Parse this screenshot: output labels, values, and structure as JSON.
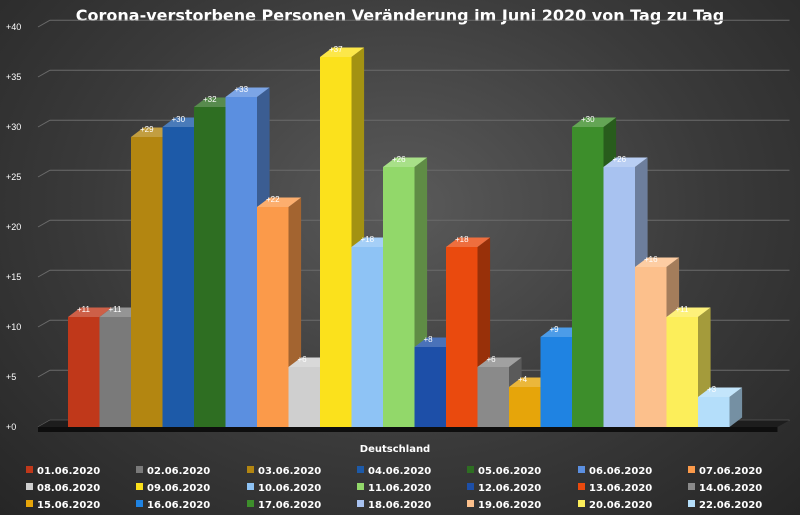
{
  "chart_data": {
    "type": "bar",
    "title": "Corona-verstorbene Personen Veränderung im Juni 2020 von Tag zu Tag",
    "xlabel": "",
    "ylabel": "",
    "categories": [
      "Deutschland"
    ],
    "ylim": [
      0,
      40
    ],
    "y_ticks": [
      "+0",
      "+5",
      "+10",
      "+15",
      "+20",
      "+25",
      "+30",
      "+35",
      "+40"
    ],
    "grid": true,
    "legend_position": "bottom",
    "series": [
      {
        "name": "01.06.2020",
        "values": [
          11
        ],
        "label": "+11",
        "color": "#c0381a"
      },
      {
        "name": "02.06.2020",
        "values": [
          11
        ],
        "label": "+11",
        "color": "#7a7a7a"
      },
      {
        "name": "03.06.2020",
        "values": [
          29
        ],
        "label": "+29",
        "color": "#b38611"
      },
      {
        "name": "04.06.2020",
        "values": [
          30
        ],
        "label": "+30",
        "color": "#1d5aa8"
      },
      {
        "name": "05.06.2020",
        "values": [
          32
        ],
        "label": "+32",
        "color": "#2e6e22"
      },
      {
        "name": "06.06.2020",
        "values": [
          33
        ],
        "label": "+33",
        "color": "#5b8fe0"
      },
      {
        "name": "07.06.2020",
        "values": [
          22
        ],
        "label": "+22",
        "color": "#fb9a4a"
      },
      {
        "name": "08.06.2020",
        "values": [
          6
        ],
        "label": "+6",
        "color": "#cfcfcf"
      },
      {
        "name": "09.06.2020",
        "values": [
          37
        ],
        "label": "+37",
        "color": "#fbe11c"
      },
      {
        "name": "10.06.2020",
        "values": [
          18
        ],
        "label": "+18",
        "color": "#8ec3f5"
      },
      {
        "name": "11.06.2020",
        "values": [
          26
        ],
        "label": "+26",
        "color": "#92d86a"
      },
      {
        "name": "12.06.2020",
        "values": [
          8
        ],
        "label": "+8",
        "color": "#1d4fa8"
      },
      {
        "name": "13.06.2020",
        "values": [
          18
        ],
        "label": "+18",
        "color": "#ea4a0e"
      },
      {
        "name": "14.06.2020",
        "values": [
          6
        ],
        "label": "+6",
        "color": "#8a8a8a"
      },
      {
        "name": "15.06.2020",
        "values": [
          4
        ],
        "label": "+4",
        "color": "#e6a50a"
      },
      {
        "name": "16.06.2020",
        "values": [
          9
        ],
        "label": "+9",
        "color": "#1f83e2"
      },
      {
        "name": "17.06.2020",
        "values": [
          30
        ],
        "label": "+30",
        "color": "#3d8e2b"
      },
      {
        "name": "18.06.2020",
        "values": [
          26
        ],
        "label": "+26",
        "color": "#a8c2f0"
      },
      {
        "name": "19.06.2020",
        "values": [
          16
        ],
        "label": "+16",
        "color": "#fcc08c"
      },
      {
        "name": "20.06.2020",
        "values": [
          11
        ],
        "label": "+11",
        "color": "#fcee5a"
      },
      {
        "name": "22.06.2020",
        "values": [
          3
        ],
        "label": "+3",
        "color": "#b4defa"
      }
    ]
  }
}
